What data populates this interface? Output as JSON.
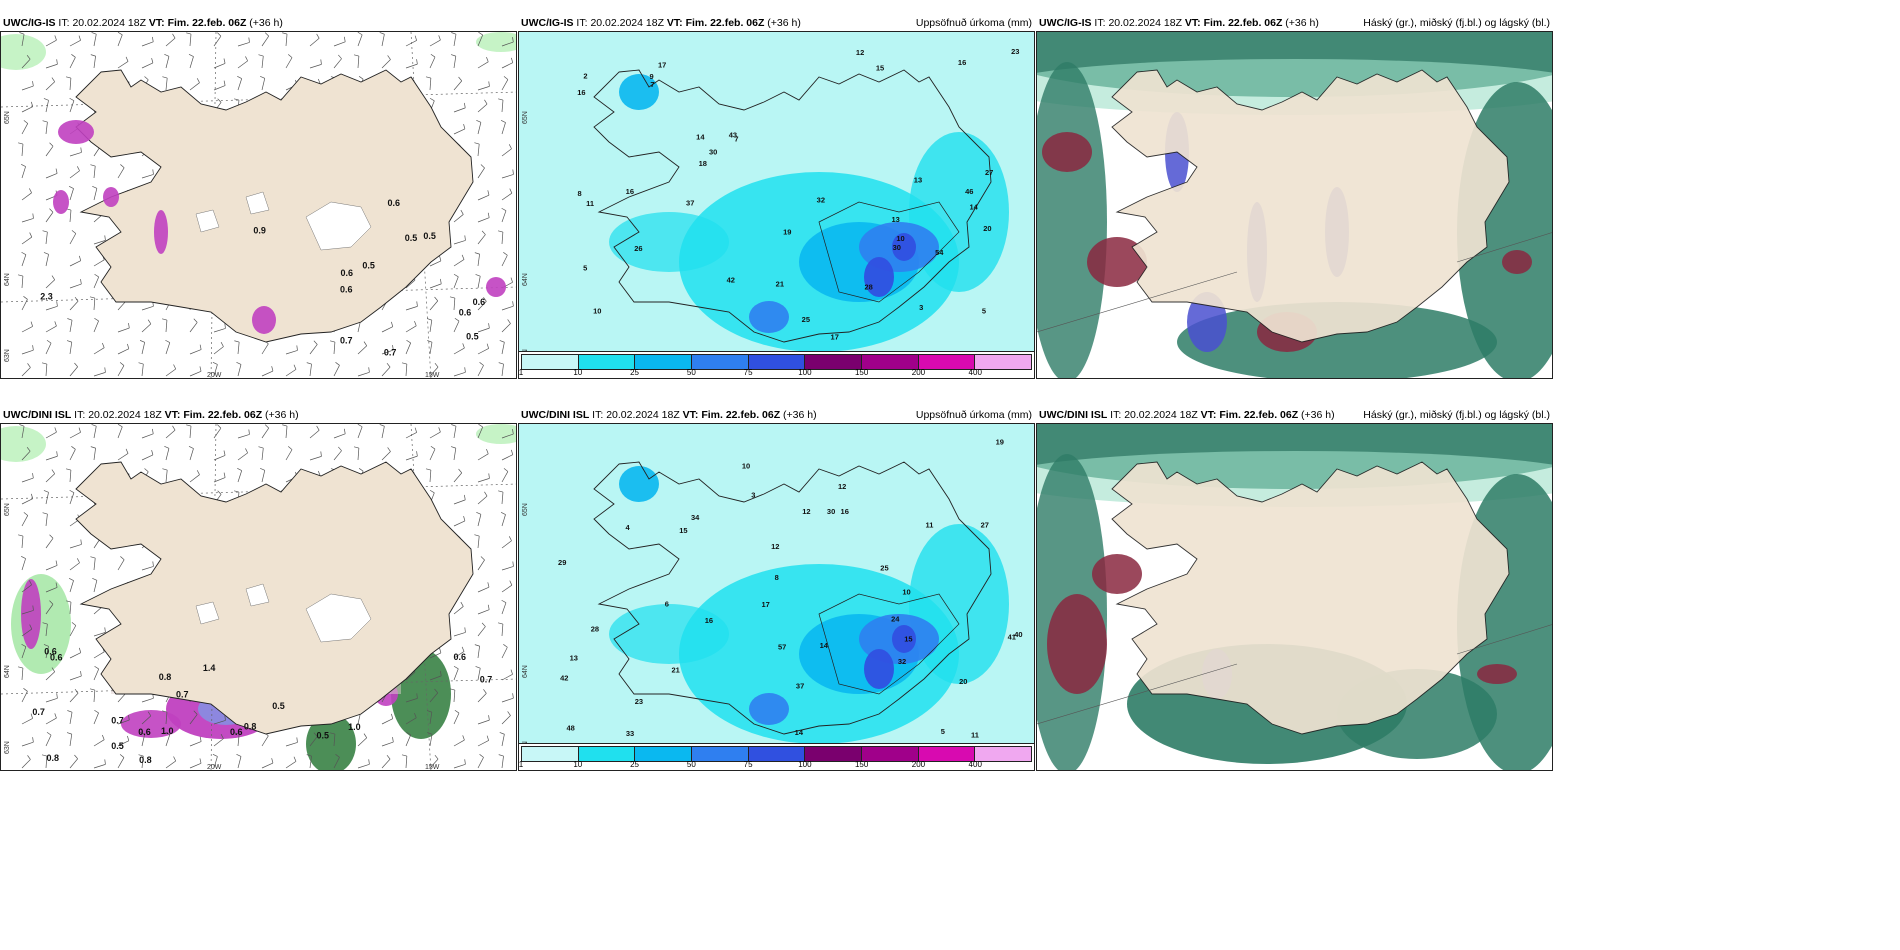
{
  "rows": [
    {
      "model": "UWC/IG-IS",
      "it_label": "IT:",
      "it_value": "20.02.2024 18Z",
      "vt_label": "VT:",
      "vt_value": "Fim. 22.feb. 06Z",
      "lead": "(+36 h)"
    },
    {
      "model": "UWC/DINI ISL",
      "it_label": "IT:",
      "it_value": "20.02.2024 18Z",
      "vt_label": "VT:",
      "vt_value": "Fim. 22.feb. 06Z",
      "lead": "(+36 h)"
    }
  ],
  "panel_titles": {
    "precip": "Uppsöfnuð úrkoma (mm)",
    "clouds": "Háský (gr.), miðský (fj.bl.) og lágský (bl.)"
  },
  "axis_labels": {
    "lat_top": "65N",
    "lat_mid": "64N",
    "lat_bot": "63N",
    "lon_left": "20W",
    "lon_right": "15W"
  },
  "precip_legend": {
    "ticks": [
      "1",
      "10",
      "25",
      "50",
      "75",
      "100",
      "150",
      "200",
      "400"
    ],
    "colors": [
      "#c8f7f7",
      "#20e0ee",
      "#0ab8f0",
      "#2f7ff0",
      "#3050e0",
      "#7a006e",
      "#a0008a",
      "#d80ab0",
      "#f0a8f0"
    ]
  },
  "colors": {
    "land": "#efe3d2",
    "sea_precip": "#b9f6f4",
    "cloud_high": "#2e7c66",
    "cloud_mid": "#8a2840",
    "cloud_low": "#4a50d0",
    "purple_precip": "#c040c0"
  },
  "ig_left_values": [
    "0.6",
    "0.6",
    "0.5",
    "0.6",
    "0.7",
    "0.6",
    "0.5",
    "0.9",
    "0.5",
    "0.7",
    "0.5",
    "0.6",
    "2.3"
  ],
  "dini_left_values": [
    "0.6",
    "0.6",
    "0.7",
    "0.6",
    "0.7",
    "0.5",
    "1.4",
    "1.0",
    "0.8",
    "1.0",
    "0.6",
    "0.5",
    "0.8",
    "0.7",
    "0.8",
    "0.7",
    "0.6",
    "0.5",
    "0.8"
  ],
  "ig_precip_values": [
    "13",
    "14",
    "10",
    "17",
    "7",
    "3",
    "5",
    "15",
    "14",
    "17",
    "16",
    "8",
    "2",
    "5",
    "42",
    "27",
    "19",
    "32",
    "43",
    "26",
    "23",
    "16",
    "18",
    "20",
    "12",
    "9",
    "10",
    "11",
    "7",
    "13",
    "25",
    "28",
    "30",
    "37",
    "46",
    "54",
    "30",
    "16",
    "21"
  ],
  "dini_precip_values": [
    "12",
    "11",
    "15",
    "14",
    "10",
    "17",
    "16",
    "8",
    "5",
    "6",
    "3",
    "4",
    "12",
    "19",
    "20",
    "32",
    "34",
    "23",
    "41",
    "27",
    "37",
    "16",
    "29",
    "33",
    "42",
    "48",
    "57",
    "14",
    "15",
    "11",
    "12",
    "13",
    "10",
    "21",
    "24",
    "25",
    "28",
    "30",
    "40"
  ]
}
